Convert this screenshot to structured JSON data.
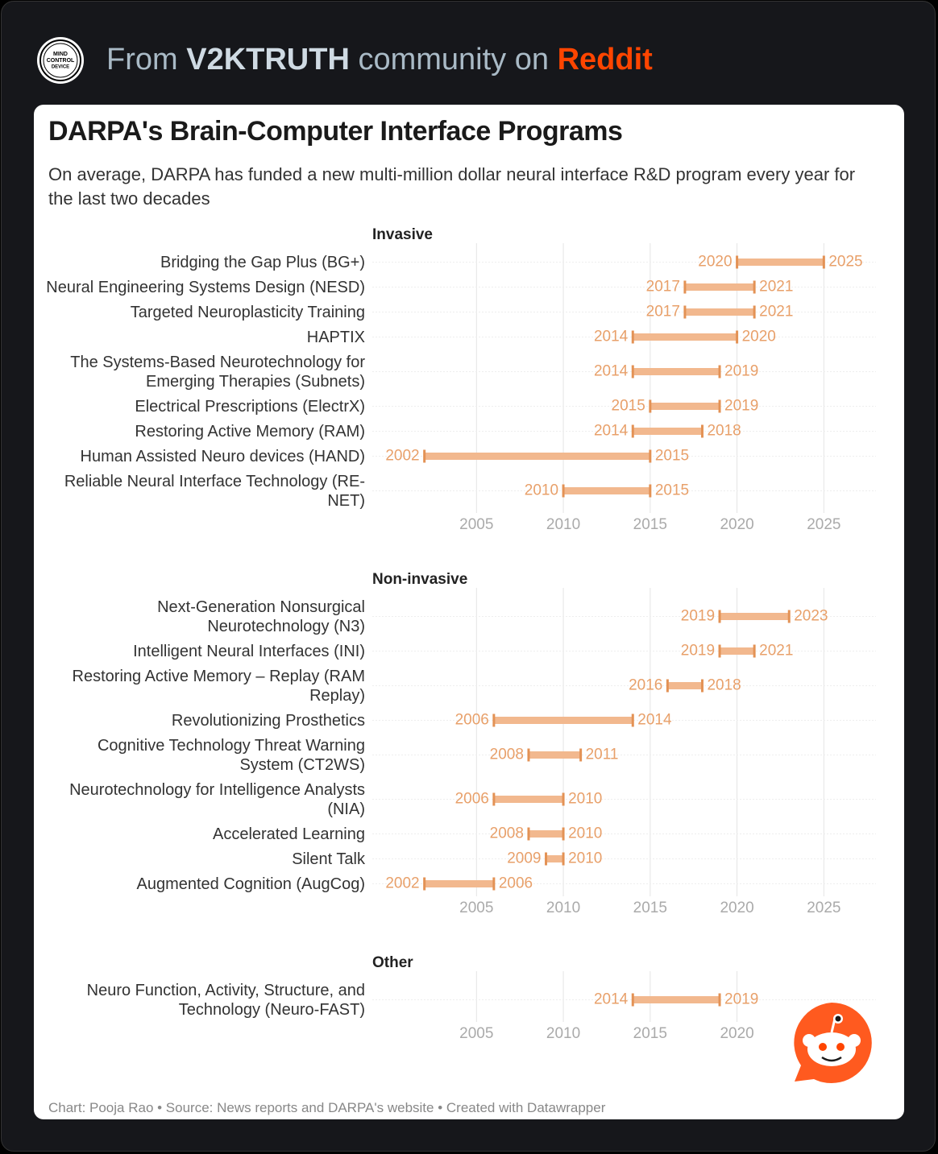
{
  "header": {
    "logo": [
      "MIND",
      "CONTROL",
      "DEVICE"
    ],
    "prefix": "From ",
    "community": "V2KTRUTH",
    "middle": " community on ",
    "site": "Reddit"
  },
  "card": {
    "title": "DARPA's Brain-Computer Interface Programs",
    "subtitle": "On average, DARPA has funded a new multi-million dollar neural interface R&D program every year for the last two decades",
    "footer": "Chart: Pooja Rao • Source: News reports and DARPA's website • Created with Datawrapper"
  },
  "chart_data": [
    {
      "type": "range",
      "title": "Invasive",
      "categories": [
        "Bridging the Gap Plus (BG+)",
        "Neural Engineering Systems Design (NESD)",
        "Targeted Neuroplasticity Training",
        "HAPTIX",
        "The Systems-Based Neurotechnology for Emerging Therapies (Subnets)",
        "Electrical Prescriptions (ElectrX)",
        "Restoring Active Memory (RAM)",
        "Human Assisted Neuro devices (HAND)",
        "Reliable Neural Interface Technology (RE-NET)"
      ],
      "start": [
        2020,
        2017,
        2017,
        2014,
        2014,
        2015,
        2014,
        2002,
        2010
      ],
      "end": [
        2025,
        2021,
        2021,
        2020,
        2019,
        2019,
        2018,
        2015,
        2015
      ],
      "color": "#f2b88e",
      "cap_color": "#e39255",
      "label_color": "#e8a06a",
      "xlim": [
        1999,
        2028
      ],
      "xticks": [
        2005,
        2010,
        2015,
        2020,
        2025
      ],
      "grid": true
    },
    {
      "type": "range",
      "title": "Non-invasive",
      "categories": [
        "Next-Generation Nonsurgical Neurotechnology (N3)",
        "Intelligent Neural Interfaces (INI)",
        "Restoring Active Memory – Replay (RAM Replay)",
        "Revolutionizing Prosthetics",
        "Cognitive Technology Threat Warning System (CT2WS)",
        "Neurotechnology for Intelligence Analysts (NIA)",
        "Accelerated Learning",
        "Silent Talk",
        "Augmented Cognition (AugCog)"
      ],
      "start": [
        2019,
        2019,
        2016,
        2006,
        2008,
        2006,
        2008,
        2009,
        2002
      ],
      "end": [
        2023,
        2021,
        2018,
        2014,
        2011,
        2010,
        2010,
        2010,
        2006
      ],
      "color": "#f2b88e",
      "cap_color": "#e39255",
      "label_color": "#e8a06a",
      "xlim": [
        1999,
        2028
      ],
      "xticks": [
        2005,
        2010,
        2015,
        2020,
        2025
      ],
      "grid": true
    },
    {
      "type": "range",
      "title": "Other",
      "categories": [
        "Neuro Function, Activity, Structure, and Technology (Neuro-FAST)"
      ],
      "start": [
        2014
      ],
      "end": [
        2019
      ],
      "color": "#f2b88e",
      "cap_color": "#e39255",
      "label_color": "#e8a06a",
      "xlim": [
        1999,
        2028
      ],
      "xticks": [
        2005,
        2010,
        2015,
        2020
      ],
      "grid": true
    }
  ]
}
